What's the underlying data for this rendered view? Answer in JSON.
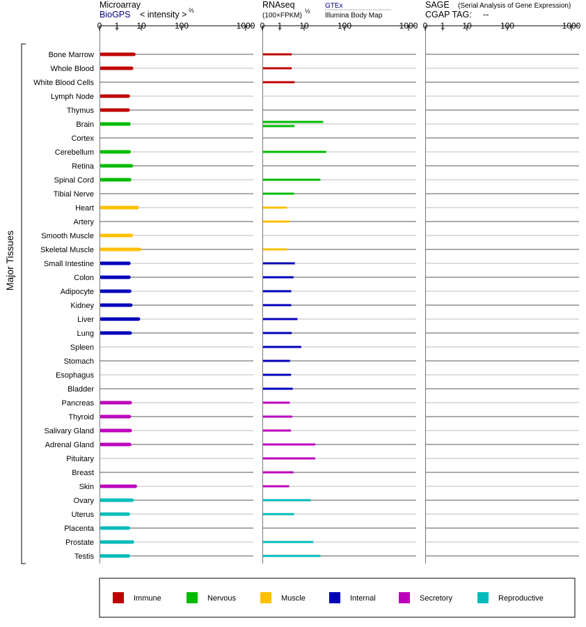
{
  "panels": {
    "microarray": {
      "title": "Microarray",
      "source": "BioGPS",
      "measure": "< intensity >",
      "measure_exp": "⅔",
      "ticks": [
        "0",
        "1",
        "10",
        "100",
        "1000"
      ]
    },
    "rnaseq": {
      "title": "RNAseq",
      "unit": "(100×FPKM)",
      "unit_exp": "½",
      "source_1": "GTEx",
      "source_2": "Illumina Body Map",
      "ticks": [
        "0",
        "1",
        "10",
        "100",
        "1000"
      ]
    },
    "sage": {
      "title": "SAGE",
      "subtitle": "(Serial Analysis of Gene Expression)",
      "tag_label": "CGAP TAG:",
      "tag_value": "--",
      "ticks": [
        "0",
        "1",
        "10",
        "100",
        "1000"
      ]
    }
  },
  "y_group_label": "Major Tissues",
  "legend": [
    {
      "label": "Immune",
      "color": "#c00000"
    },
    {
      "label": "Nervous",
      "color": "#00bb00"
    },
    {
      "label": "Muscle",
      "color": "#ffc000"
    },
    {
      "label": "Internal",
      "color": "#0000bb"
    },
    {
      "label": "Secretory",
      "color": "#bb00bb"
    },
    {
      "label": "Reproductive",
      "color": "#00bbbb"
    }
  ],
  "chart_data": {
    "type": "bar",
    "axis_scale": "power",
    "x_range": [
      0,
      1000
    ],
    "categories": [
      "Bone Marrow",
      "Whole Blood",
      "White Blood Cells",
      "Lymph Node",
      "Thymus",
      "Brain",
      "Cortex",
      "Cerebellum",
      "Retina",
      "Spinal Cord",
      "Tibial Nerve",
      "Heart",
      "Artery",
      "Smooth Muscle",
      "Skeletal Muscle",
      "Small Intestine",
      "Colon",
      "Adipocyte",
      "Kidney",
      "Liver",
      "Lung",
      "Spleen",
      "Stomach",
      "Esophagus",
      "Bladder",
      "Pancreas",
      "Thyroid",
      "Salivary Gland",
      "Adrenal Gland",
      "Pituitary",
      "Breast",
      "Skin",
      "Ovary",
      "Uterus",
      "Placenta",
      "Prostate",
      "Testis"
    ],
    "tissue_groups": [
      "Immune",
      "Immune",
      "Immune",
      "Immune",
      "Immune",
      "Nervous",
      "Nervous",
      "Nervous",
      "Nervous",
      "Nervous",
      "Nervous",
      "Muscle",
      "Muscle",
      "Muscle",
      "Muscle",
      "Internal",
      "Internal",
      "Internal",
      "Internal",
      "Internal",
      "Internal",
      "Internal",
      "Internal",
      "Internal",
      "Internal",
      "Secretory",
      "Secretory",
      "Secretory",
      "Secretory",
      "Secretory",
      "Secretory",
      "Secretory",
      "Reproductive",
      "Reproductive",
      "Reproductive",
      "Reproductive",
      "Reproductive"
    ],
    "series": [
      {
        "name": "BioGPS",
        "values": [
          8.5,
          7.0,
          null,
          5.2,
          5.1,
          5.5,
          null,
          5.6,
          6.9,
          5.9,
          null,
          11.0,
          null,
          6.9,
          13.0,
          5.5,
          5.5,
          5.9,
          6.5,
          12.0,
          6.2,
          null,
          null,
          null,
          null,
          6.2,
          5.7,
          6.2,
          5.9,
          null,
          null,
          9.5,
          7.3,
          5.2,
          5.3,
          7.5,
          5.2
        ]
      },
      {
        "name": "GTEx",
        "values": [
          4.6,
          null,
          null,
          null,
          null,
          39,
          null,
          45,
          null,
          34,
          null,
          null,
          null,
          null,
          null,
          null,
          null,
          null,
          null,
          null,
          null,
          null,
          null,
          null,
          null,
          null,
          null,
          null,
          null,
          null,
          null,
          null,
          null,
          null,
          null,
          null,
          null
        ]
      },
      {
        "name": "Illumina Body Map",
        "values": [
          null,
          4.6,
          6.1,
          null,
          null,
          6.0,
          null,
          null,
          null,
          null,
          5.8,
          2.8,
          3.8,
          null,
          2.8,
          6.2,
          5.5,
          4.4,
          4.4,
          7.8,
          4.6,
          10.5,
          3.9,
          4.3,
          5.1,
          3.8,
          4.9,
          4.3,
          26,
          26,
          5.5,
          3.5,
          20,
          5.8,
          null,
          23,
          34
        ]
      }
    ]
  }
}
